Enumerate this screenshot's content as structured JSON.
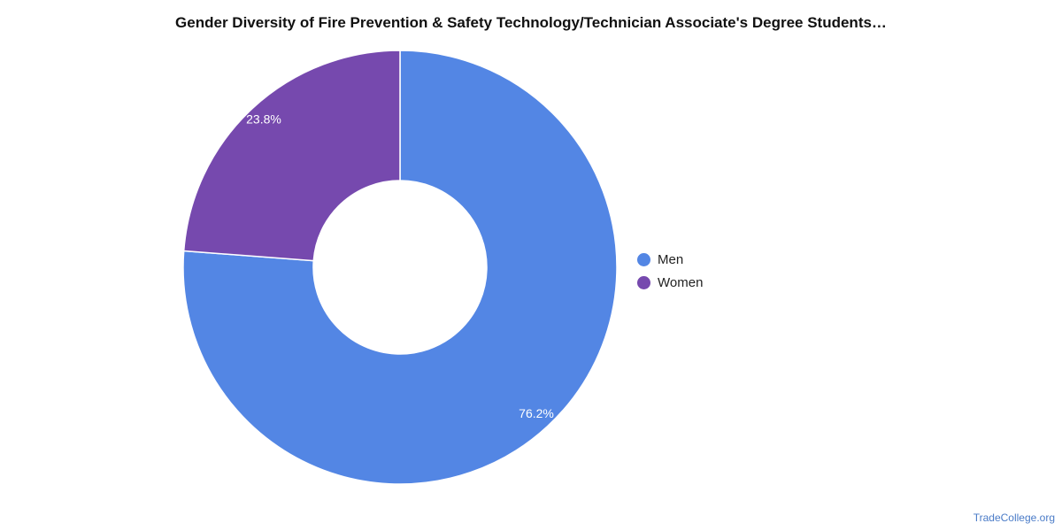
{
  "chart_data": {
    "type": "pie",
    "style": "donut",
    "title": "Gender Diversity of Fire Prevention & Safety Technology/Technician Associate's Degree Students…",
    "categories": [
      "Men",
      "Women"
    ],
    "values": [
      76.2,
      23.8
    ],
    "value_labels": [
      "76.2%",
      "23.8%"
    ],
    "colors": [
      "#5386E4",
      "#7649AE"
    ],
    "legend_position": "right"
  },
  "legend": {
    "items": [
      {
        "label": "Men",
        "color": "#5386E4"
      },
      {
        "label": "Women",
        "color": "#7649AE"
      }
    ]
  },
  "source": "TradeCollege.org"
}
